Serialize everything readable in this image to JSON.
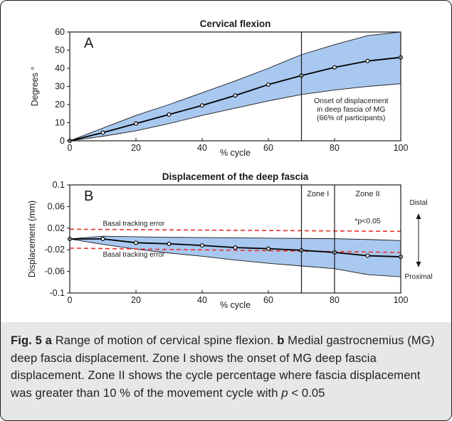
{
  "chart_data": [
    {
      "type": "line",
      "panel_label": "A",
      "title": "Cervical flexion",
      "xlabel": "% cycle",
      "ylabel": "Degrees °",
      "xlim": [
        0,
        100
      ],
      "ylim": [
        0,
        60
      ],
      "x_ticks": [
        "0",
        "20",
        "40",
        "60",
        "80",
        "100"
      ],
      "y_ticks": [
        "0",
        "10",
        "20",
        "30",
        "40",
        "50",
        "60"
      ],
      "x": [
        0,
        10,
        20,
        30,
        40,
        50,
        60,
        70,
        80,
        90,
        100
      ],
      "mean": [
        0,
        4.5,
        9.5,
        14.5,
        19.5,
        25,
        31,
        36,
        40.5,
        44,
        46
      ],
      "band_upper": [
        0,
        7,
        14,
        20,
        26.5,
        33,
        40,
        47.5,
        53,
        58,
        60
      ],
      "band_lower": [
        0,
        2.5,
        5.5,
        9.5,
        14,
        18,
        22,
        25.5,
        28,
        30,
        31.5
      ],
      "band_color": "#a9c8f0",
      "vertical_line_x": 70,
      "annotation": [
        "Onset of displacement",
        "in deep fascia of MG",
        "(66% of participants)"
      ]
    },
    {
      "type": "line",
      "panel_label": "B",
      "title": "Displacement of the deep fascia",
      "xlabel": "% cycle",
      "ylabel": "Displacement (mm)",
      "xlim": [
        0,
        100
      ],
      "ylim": [
        -0.1,
        0.1
      ],
      "x_ticks": [
        "0",
        "20",
        "40",
        "60",
        "80",
        "100"
      ],
      "y_ticks": [
        "0.1",
        "0.06",
        "0.02",
        "-0.02",
        "-0.06",
        "-0.1"
      ],
      "x": [
        0,
        10,
        20,
        30,
        40,
        50,
        60,
        70,
        80,
        90,
        100
      ],
      "mean": [
        0,
        0,
        -0.007,
        -0.009,
        -0.012,
        -0.016,
        -0.018,
        -0.021,
        -0.025,
        -0.031,
        -0.033
      ],
      "band_upper": [
        0,
        0.005,
        0.004,
        0.003,
        0.0025,
        0.002,
        0.0015,
        0.001,
        0.0005,
        -0.001,
        -0.003
      ],
      "band_lower": [
        0,
        -0.01,
        -0.019,
        -0.026,
        -0.032,
        -0.039,
        -0.045,
        -0.05,
        -0.055,
        -0.066,
        -0.07
      ],
      "band_color": "#a9c8f0",
      "basal_tracking_error_upper": {
        "label": "Basal tracking error",
        "y_start": 0.018,
        "y_end": 0.014
      },
      "basal_tracking_error_lower": {
        "label": "Basal tracking error",
        "y_start": -0.017,
        "y_end": -0.025
      },
      "error_line_color": "#e8302a",
      "zone_lines_x": [
        70,
        80
      ],
      "zones": [
        "Zone I",
        "Zone II"
      ],
      "significance_label": "*p<0.05",
      "direction_labels": {
        "top": "Distal",
        "bottom": "Proximal"
      }
    }
  ],
  "caption": {
    "fig_label": "Fig. 5",
    "a_label": "a",
    "a_text": "Range of motion of cervical spine flexion.",
    "b_label": "b",
    "b_text": "Medial gastrocnemius (MG) deep fascia displacement. Zone I shows the onset of MG deep fascia displacement. Zone II shows the cycle percentage where fascia displacement was greater than 10 % of the movement cycle with",
    "p_symbol": "p",
    "tail": "< 0.05",
    "background": "#e6e7e8"
  }
}
